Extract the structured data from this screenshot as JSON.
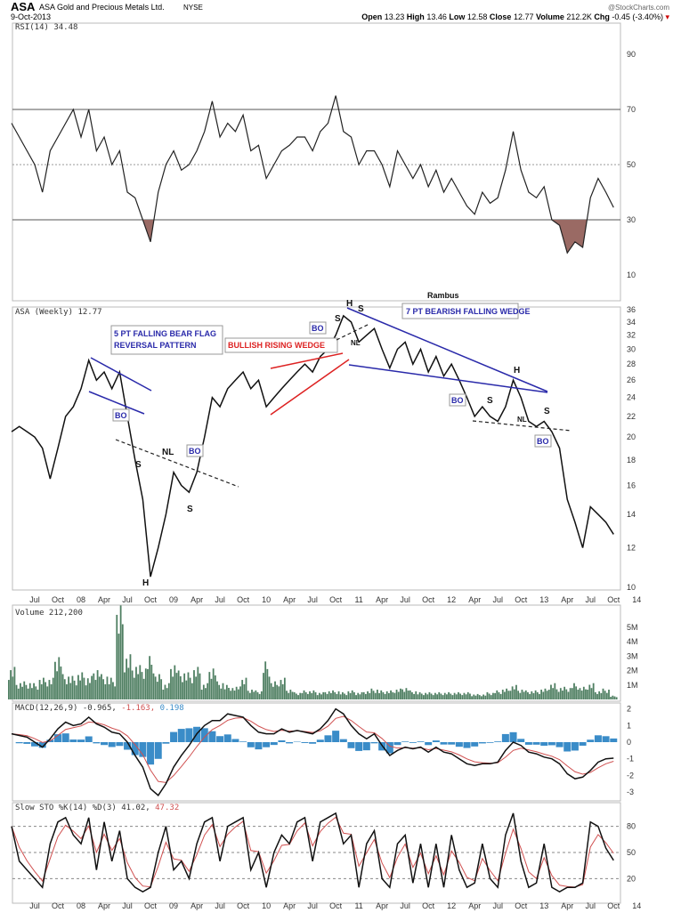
{
  "header": {
    "symbol": "ASA",
    "name": "ASA Gold and Precious Metals Ltd.",
    "exchange": "NYSE",
    "date": "9-Oct-2013",
    "source": "@StockCharts.com",
    "open_label": "Open",
    "open": "13.23",
    "high_label": "High",
    "high": "13.46",
    "low_label": "Low",
    "low": "12.58",
    "close_label": "Close",
    "close": "12.77",
    "volume_label": "Volume",
    "volume": "212.2K",
    "chg_label": "Chg",
    "chg": "-0.45 (-3.40%)"
  },
  "panels": {
    "rsi": "RSI(14) 34.48",
    "price": "ASA (Weekly) 12.77",
    "volume": "Volume 212,200",
    "macd": "MACD(12,26,9) -0.965,",
    "macd_signal": "-1.163,",
    "macd_hist": "0.198",
    "sto": "Slow STO %K(14) %D(3) 41.02,",
    "sto_d": "47.32"
  },
  "annotations": {
    "author": "Rambus",
    "bear_flag_1": "5 PT FALLING BEAR FLAG",
    "bear_flag_2": "REVERSAL PATTERN",
    "rising_wedge": "BULLISH RISING WEDGE",
    "falling_wedge": "7 PT BEARISH FALLING WEDGE",
    "bo": "BO",
    "h": "H",
    "s": "S",
    "nl": "NL"
  },
  "colors": {
    "price": "#111111",
    "rsi_fill": "#9a6a64",
    "volume": "#4f7f62",
    "macd_signal": "#d05050",
    "macd_hist": "#3a8cc8",
    "blue_line": "#2a2aaa",
    "red_line": "#dd2222"
  },
  "chart_data": [
    {
      "type": "line",
      "title": "RSI(14)",
      "start": "Apr 2007",
      "interval": "month",
      "yticks": [
        10,
        30,
        50,
        70,
        90
      ],
      "ylim": [
        0,
        100
      ],
      "values": [
        65,
        60,
        55,
        50,
        40,
        55,
        60,
        65,
        70,
        60,
        70,
        55,
        60,
        50,
        55,
        40,
        38,
        30,
        22,
        40,
        50,
        55,
        48,
        50,
        55,
        62,
        73,
        60,
        65,
        62,
        68,
        55,
        57,
        45,
        50,
        55,
        57,
        60,
        60,
        55,
        62,
        65,
        75,
        62,
        60,
        50,
        55,
        55,
        50,
        42,
        55,
        50,
        45,
        50,
        42,
        48,
        40,
        45,
        40,
        35,
        32,
        40,
        36,
        38,
        48,
        62,
        48,
        40,
        38,
        42,
        30,
        28,
        18,
        22,
        20,
        38,
        45,
        40,
        34.48
      ]
    },
    {
      "type": "line",
      "title": "ASA (Weekly)",
      "scale": "log",
      "yticks": [
        10,
        12,
        14,
        16,
        18,
        20,
        22,
        24,
        26,
        28,
        30,
        32,
        34,
        36
      ],
      "values": [
        20.5,
        21,
        20.5,
        20,
        19,
        16.5,
        19,
        22,
        23,
        25,
        28.5,
        26,
        27,
        25,
        27,
        22,
        18,
        15,
        10.5,
        12,
        14,
        17,
        16,
        15.5,
        17,
        20,
        24,
        23,
        25,
        26,
        27,
        25,
        26,
        23,
        24,
        25,
        26,
        27,
        28,
        27,
        29,
        30,
        32,
        35,
        34,
        31,
        32,
        33,
        30,
        27.5,
        30,
        31,
        28,
        30,
        27,
        29,
        26.5,
        28,
        26,
        24,
        22,
        23,
        22,
        21.5,
        23,
        26,
        24,
        21.5,
        21,
        21.5,
        20.5,
        19,
        15,
        13.5,
        12,
        14.5,
        14,
        13.5,
        12.77
      ]
    },
    {
      "type": "bar",
      "title": "Volume",
      "yticks": [
        "1M",
        "2M",
        "3M",
        "4M",
        "5M"
      ],
      "unit": "M",
      "values": [
        1.8,
        1.0,
        1.0,
        0.9,
        1.2,
        1.2,
        2.6,
        1.4,
        1.3,
        1.5,
        1.3,
        1.8,
        1.4,
        1.2,
        5.2,
        2.5,
        2.0,
        1.9,
        2.4,
        1.4,
        0.9,
        2.1,
        1.6,
        1.5,
        1.8,
        0.9,
        1.9,
        1.0,
        0.8,
        0.7,
        1.2,
        0.6,
        0.5,
        2.1,
        1.0,
        1.2,
        0.6,
        0.4,
        0.5,
        0.5,
        0.4,
        0.5,
        0.5,
        0.4,
        0.5,
        0.4,
        0.5,
        0.6,
        0.5,
        0.5,
        0.6,
        0.7,
        0.5,
        0.4,
        0.4,
        0.4,
        0.4,
        0.4,
        0.4,
        0.4,
        0.3,
        0.3,
        0.4,
        0.5,
        0.6,
        0.8,
        0.6,
        0.5,
        0.5,
        0.6,
        0.9,
        0.7,
        0.7,
        0.9,
        0.7,
        0.9,
        0.5,
        0.6,
        0.21
      ]
    },
    {
      "type": "line",
      "title": "MACD(12,26,9)",
      "yticks": [
        -3,
        -2,
        -1,
        0,
        1,
        2
      ],
      "values": [
        0.5,
        0.4,
        0.3,
        0,
        -0.3,
        0.2,
        0.8,
        1.2,
        1.0,
        1.1,
        1.5,
        1.1,
        0.9,
        0.6,
        0.5,
        0,
        -0.8,
        -1.5,
        -2.8,
        -3.2,
        -2.5,
        -1.5,
        -0.8,
        -0.2,
        0.5,
        1.0,
        1.3,
        1.3,
        1.7,
        1.6,
        1.5,
        1.0,
        0.6,
        0.5,
        0.5,
        0.8,
        0.6,
        0.7,
        0.6,
        0.5,
        0.8,
        1.3,
        2.0,
        1.7,
        1.0,
        0.5,
        0.2,
        0.5,
        -0.2,
        -0.8,
        -0.5,
        -0.3,
        -0.4,
        -0.3,
        -0.6,
        -0.3,
        -0.6,
        -0.7,
        -1.0,
        -1.3,
        -1.4,
        -1.3,
        -1.3,
        -1.2,
        -0.5,
        0.0,
        -0.2,
        -0.6,
        -0.7,
        -0.9,
        -1.0,
        -1.3,
        -1.9,
        -2.2,
        -2.1,
        -1.7,
        -1.2,
        -1.0,
        -0.965
      ]
    },
    {
      "type": "line",
      "title": "Slow STO",
      "yticks": [
        20,
        50,
        80
      ],
      "values": [
        80,
        40,
        30,
        20,
        10,
        60,
        85,
        90,
        70,
        60,
        90,
        30,
        85,
        40,
        75,
        20,
        10,
        5,
        10,
        50,
        80,
        30,
        40,
        20,
        60,
        85,
        90,
        40,
        80,
        85,
        90,
        30,
        50,
        10,
        50,
        70,
        60,
        85,
        90,
        40,
        85,
        90,
        95,
        60,
        70,
        10,
        60,
        75,
        20,
        10,
        60,
        70,
        15,
        60,
        10,
        60,
        10,
        70,
        30,
        10,
        15,
        60,
        20,
        10,
        70,
        95,
        40,
        10,
        15,
        60,
        10,
        5,
        10,
        10,
        15,
        85,
        80,
        55,
        41.02
      ]
    }
  ],
  "xaxis": [
    "Jul",
    "Oct",
    "08",
    "Apr",
    "Jul",
    "Oct",
    "09",
    "Apr",
    "Jul",
    "Oct",
    "10",
    "Apr",
    "Jul",
    "Oct",
    "11",
    "Apr",
    "Jul",
    "Oct",
    "12",
    "Apr",
    "Jul",
    "Oct",
    "13",
    "Apr",
    "Jul",
    "Oct",
    "14"
  ]
}
